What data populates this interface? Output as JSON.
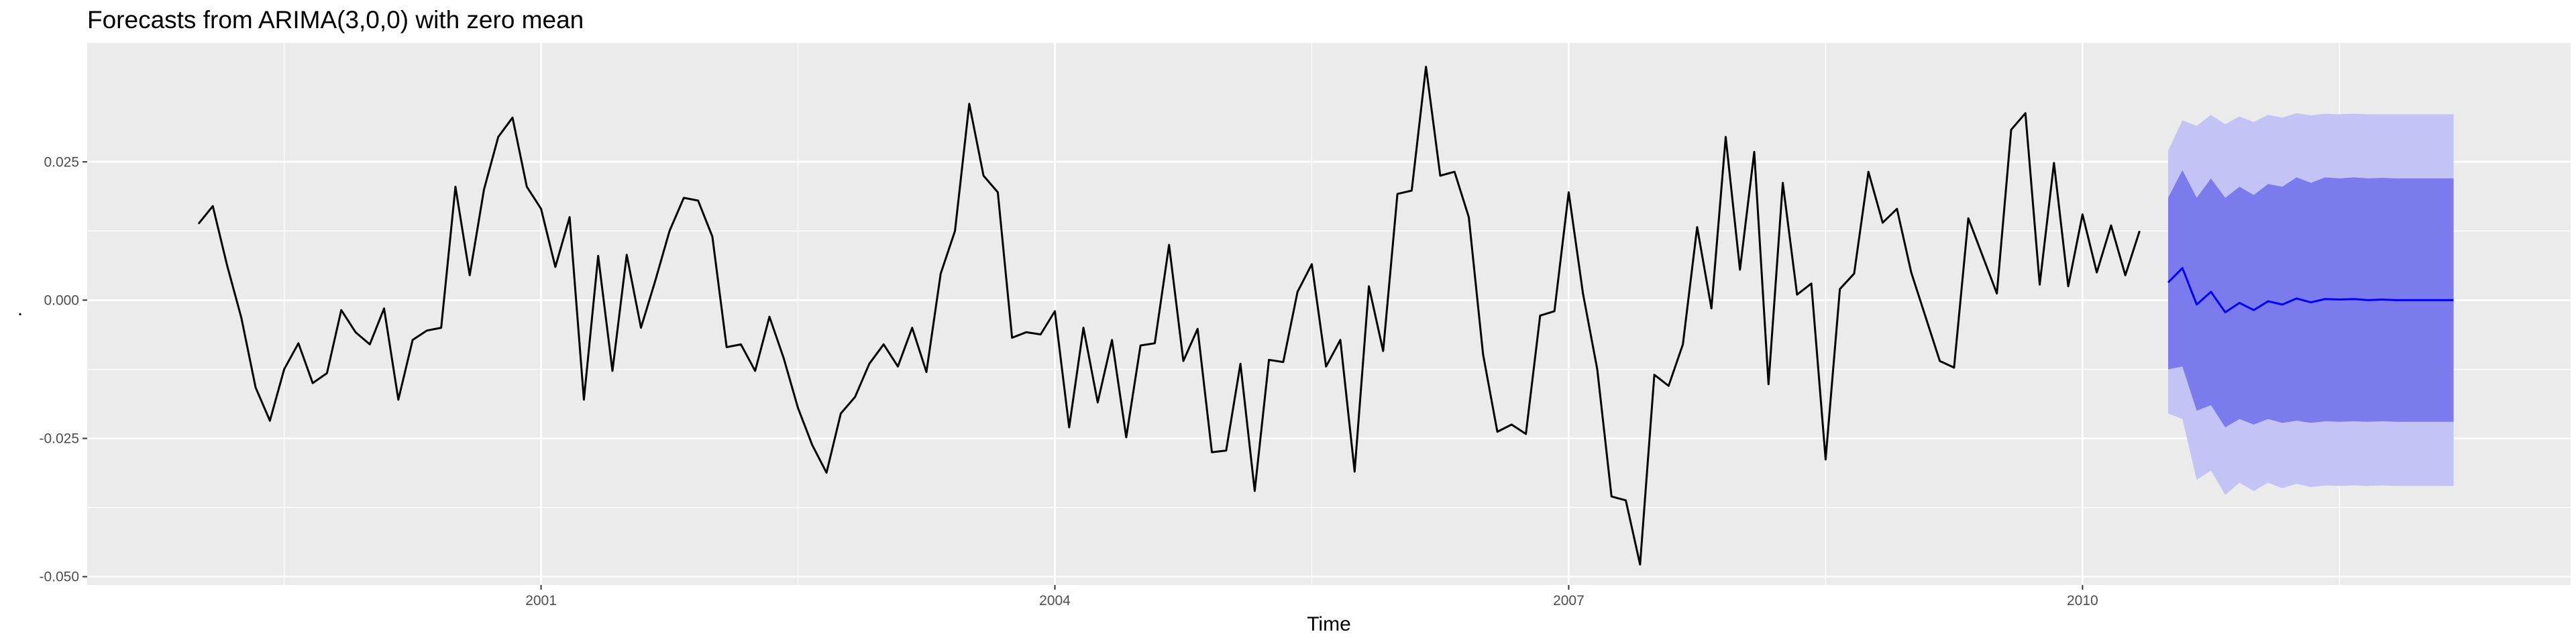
{
  "chart_data": {
    "type": "line",
    "title": "Forecasts from ARIMA(3,0,0) with zero mean",
    "xlabel": "Time",
    "ylabel": ".",
    "xlim": [
      1998.35,
      2012.85
    ],
    "ylim": [
      -0.0515,
      0.0465
    ],
    "x_ticks": [
      2001,
      2004,
      2007,
      2010
    ],
    "x_minor_ticks": [
      1999.5,
      2002.5,
      2005.5,
      2008.5,
      2011.5
    ],
    "y_ticks": [
      -0.05,
      -0.025,
      0.0,
      0.025
    ],
    "y_tick_labels": [
      "-0.050",
      "-0.025",
      "0.000",
      "0.025"
    ],
    "grid": true,
    "colors": {
      "panel": "#ebebeb",
      "grid": "#ffffff",
      "series": "#000000",
      "forecast": "#0000ff",
      "band80": "#7b7bee",
      "band95": "#c3c3f5"
    },
    "series": [
      {
        "x_start": 1999.0,
        "step": 0.08333333,
        "values": [
          0.0138,
          0.017,
          0.0063,
          -0.0032,
          -0.0158,
          -0.0218,
          -0.0125,
          -0.0078,
          -0.015,
          -0.0132,
          -0.0018,
          -0.0058,
          -0.008,
          -0.0015,
          -0.018,
          -0.0072,
          -0.0055,
          -0.005,
          0.0205,
          0.0045,
          0.02,
          0.0295,
          0.033,
          0.0205,
          0.0165,
          0.006,
          0.015,
          -0.018,
          0.008,
          -0.0128,
          0.0082,
          -0.005,
          0.0035,
          0.0125,
          0.0185,
          0.018,
          0.0115,
          -0.0085,
          -0.008,
          -0.0128,
          -0.003,
          -0.0105,
          -0.0195,
          -0.0262,
          -0.0312,
          -0.0205,
          -0.0175,
          -0.0115,
          -0.008,
          -0.012,
          -0.005,
          -0.013,
          0.0048,
          0.0125,
          0.0355,
          0.0225,
          0.0195,
          -0.0068,
          -0.0058,
          -0.0062,
          -0.002,
          -0.023,
          -0.005,
          -0.0185,
          -0.0072,
          -0.0248,
          -0.0082,
          -0.0078,
          0.01,
          -0.011,
          -0.0052,
          -0.0275,
          -0.0272,
          -0.0115,
          -0.0345,
          -0.0108,
          -0.0112,
          0.0015,
          0.0065,
          -0.012,
          -0.0072,
          -0.031,
          0.0025,
          -0.0092,
          0.0192,
          0.0198,
          0.0422,
          0.0225,
          0.0232,
          0.015,
          -0.0098,
          -0.0238,
          -0.0225,
          -0.0242,
          -0.0028,
          -0.002,
          0.0195,
          0.0012,
          -0.0125,
          -0.0355,
          -0.0362,
          -0.0478,
          -0.0135,
          -0.0155,
          -0.008,
          0.0132,
          -0.0015,
          0.0295,
          0.0055,
          0.0268,
          -0.0152,
          0.0212,
          0.001,
          0.003,
          -0.0288,
          0.002,
          0.0048,
          0.0232,
          0.014,
          0.0165,
          0.005,
          -0.003,
          -0.011,
          -0.0122,
          0.0148,
          0.008,
          0.0012,
          0.0308,
          0.0338,
          0.0028,
          0.0248,
          0.0025,
          0.0155,
          0.005,
          0.0135,
          0.0045,
          0.0125
        ]
      }
    ],
    "forecast": {
      "x_start": 2010.5,
      "step": 0.08333333,
      "mean": [
        0.0032,
        0.0058,
        -0.0008,
        0.0015,
        -0.0022,
        -0.0005,
        -0.0018,
        -0.0002,
        -0.0008,
        0.0003,
        -0.0004,
        0.0002,
        0.0001,
        0.0002,
        0.0,
        0.0001,
        0.0,
        0.0,
        0.0,
        0.0,
        0.0
      ],
      "lo80": [
        -0.0125,
        -0.012,
        -0.02,
        -0.019,
        -0.023,
        -0.0215,
        -0.0225,
        -0.0215,
        -0.0222,
        -0.0218,
        -0.0222,
        -0.0219,
        -0.022,
        -0.0219,
        -0.022,
        -0.0219,
        -0.022,
        -0.022,
        -0.022,
        -0.022,
        -0.022
      ],
      "hi80": [
        0.0185,
        0.0235,
        0.0185,
        0.022,
        0.0185,
        0.0205,
        0.019,
        0.021,
        0.0205,
        0.0222,
        0.0212,
        0.0222,
        0.022,
        0.0222,
        0.022,
        0.0221,
        0.022,
        0.022,
        0.022,
        0.022,
        0.022
      ],
      "lo95": [
        -0.0205,
        -0.0215,
        -0.0325,
        -0.0308,
        -0.0352,
        -0.033,
        -0.0345,
        -0.033,
        -0.034,
        -0.0332,
        -0.0338,
        -0.0335,
        -0.0336,
        -0.0335,
        -0.0336,
        -0.0335,
        -0.0336,
        -0.0336,
        -0.0336,
        -0.0336,
        -0.0336
      ],
      "hi95": [
        0.027,
        0.0325,
        0.0315,
        0.0335,
        0.0318,
        0.0332,
        0.0322,
        0.0335,
        0.033,
        0.0338,
        0.0334,
        0.0337,
        0.0336,
        0.0337,
        0.0336,
        0.0336,
        0.0336,
        0.0336,
        0.0336,
        0.0336,
        0.0336
      ]
    }
  }
}
